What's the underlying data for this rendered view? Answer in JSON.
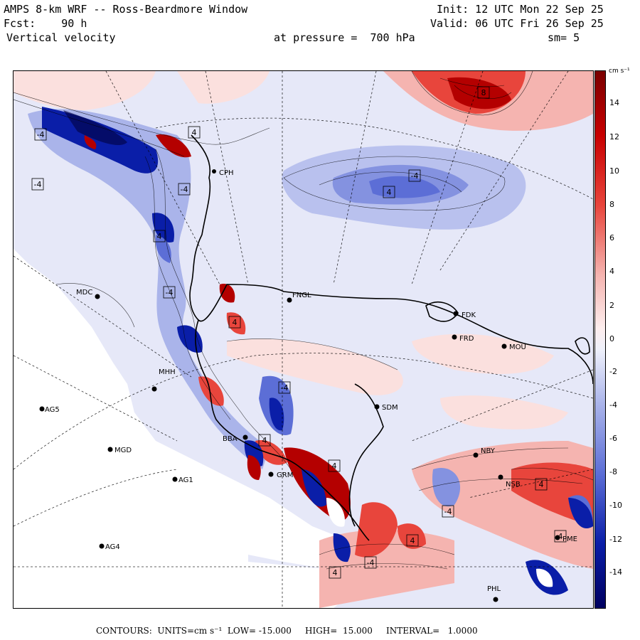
{
  "header": {
    "line1_left": "AMPS 8-km WRF -- Ross-Beardmore Window",
    "line1_right": "Init: 12 UTC Mon 22 Sep 25",
    "line2_left": "Fcst:    90 h",
    "line2_right": "Valid: 06 UTC Fri 26 Sep 25",
    "line3_left": "Vertical velocity",
    "line3_mid": "at pressure =  700 hPa",
    "line3_right": "sm= 5"
  },
  "colorbar": {
    "units": "cm s⁻¹",
    "ticks": [
      "14",
      "12",
      "10",
      "8",
      "6",
      "4",
      "2",
      "0",
      "-2",
      "-4",
      "-6",
      "-8",
      "-10",
      "-12",
      "-14"
    ]
  },
  "footer": {
    "text": "CONTOURS:  UNITS=cm s⁻¹  LOW= -15.000     HIGH=  15.000     INTERVAL=   1.0000"
  },
  "stations": [
    {
      "name": "CPH"
    },
    {
      "name": "MDC"
    },
    {
      "name": "FNGL"
    },
    {
      "name": "FDK"
    },
    {
      "name": "FRD"
    },
    {
      "name": "MOU"
    },
    {
      "name": "SDM"
    },
    {
      "name": "AG5"
    },
    {
      "name": "MGD"
    },
    {
      "name": "AG1"
    },
    {
      "name": "GRM"
    },
    {
      "name": "NBY"
    },
    {
      "name": "NSB"
    },
    {
      "name": "AG4"
    },
    {
      "name": "PME"
    },
    {
      "name": "PHL"
    },
    {
      "name": "MHH"
    },
    {
      "name": "BBA"
    }
  ],
  "contour_labels": [
    "-4",
    "-4",
    "4",
    "-4",
    "-4",
    "4",
    "-4",
    "4",
    "-4",
    "4",
    "4",
    "4",
    "-4",
    "4",
    "4",
    "4",
    "-4",
    "8",
    "4"
  ],
  "colors": {
    "strong_red": "#b40000",
    "red": "#e8453c",
    "light_red": "#f5b4b0",
    "pale_red": "#fbe0de",
    "pale_blue": "#dde2f8",
    "light_blue": "#aab4ea",
    "blue": "#5c6ed6",
    "strong_blue": "#0a1ea8"
  }
}
